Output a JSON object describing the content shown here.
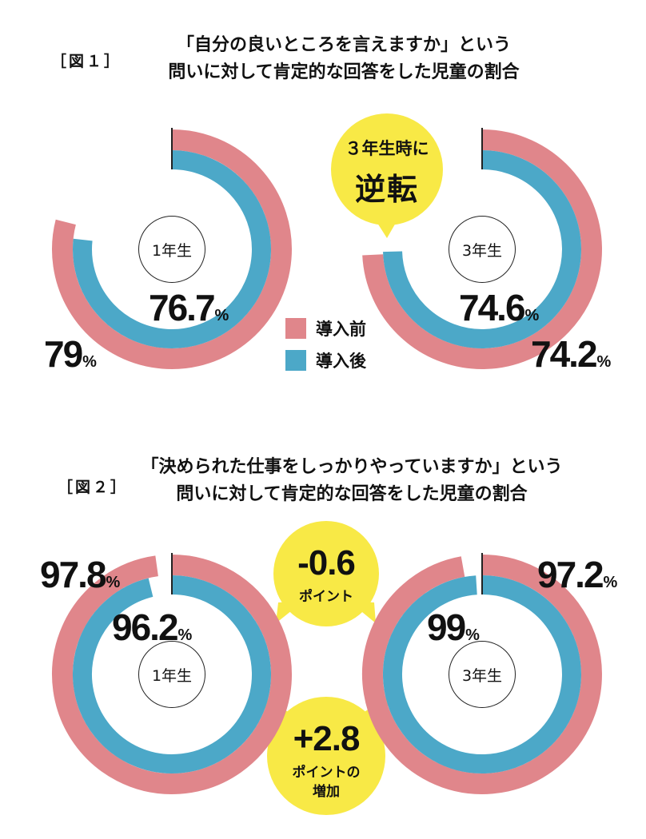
{
  "colors": {
    "before": "#e0868b",
    "after": "#4ca8c8",
    "bubble": "#f8e946"
  },
  "fig1": {
    "label": "［図１］",
    "title_line1": "「自分の良いところを言えますか」という",
    "title_line2": "問いに対して肯定的な回答をした児童の割合",
    "bubble_line1": "３年生時に",
    "bubble_line2": "逆転"
  },
  "fig2": {
    "label": "［図２］",
    "title_line1": "「決められた仕事をしっかりやっていますか」という",
    "title_line2": "問いに対して肯定的な回答をした児童の割合",
    "bubble_top_value": "-0.6",
    "bubble_top_caption": "ポイント",
    "bubble_bottom_value": "+2.8",
    "bubble_bottom_caption1": "ポイントの",
    "bubble_bottom_caption2": "増加"
  },
  "legend": {
    "before": "導入前",
    "after": "導入後"
  },
  "unit": "%",
  "chart_data": [
    {
      "type": "donut",
      "figure": "図1",
      "title": "「自分の良いところを言えますか」という問いに対して肯定的な回答をした児童の割合",
      "series": [
        {
          "name": "導入前",
          "grade": "1年生",
          "value": 79,
          "label": "79"
        },
        {
          "name": "導入後",
          "grade": "1年生",
          "value": 76.7,
          "label": "76.7"
        },
        {
          "name": "導入前",
          "grade": "3年生",
          "value": 74.2,
          "label": "74.2"
        },
        {
          "name": "導入後",
          "grade": "3年生",
          "value": 74.6,
          "label": "74.6"
        }
      ],
      "centers": [
        "1年生",
        "3年生"
      ],
      "annotation": "３年生時に逆転"
    },
    {
      "type": "donut",
      "figure": "図2",
      "title": "「決められた仕事をしっかりやっていますか」という問いに対して肯定的な回答をした児童の割合",
      "series": [
        {
          "name": "導入前",
          "grade": "1年生",
          "value": 97.8,
          "label": "97.8"
        },
        {
          "name": "導入後",
          "grade": "1年生",
          "value": 96.2,
          "label": "96.2"
        },
        {
          "name": "導入前",
          "grade": "3年生",
          "value": 97.2,
          "label": "97.2"
        },
        {
          "name": "導入後",
          "grade": "3年生",
          "value": 99,
          "label": "99"
        }
      ],
      "centers": [
        "1年生",
        "3年生"
      ],
      "annotations": [
        "-0.6 ポイント",
        "+2.8 ポイントの増加"
      ]
    }
  ]
}
